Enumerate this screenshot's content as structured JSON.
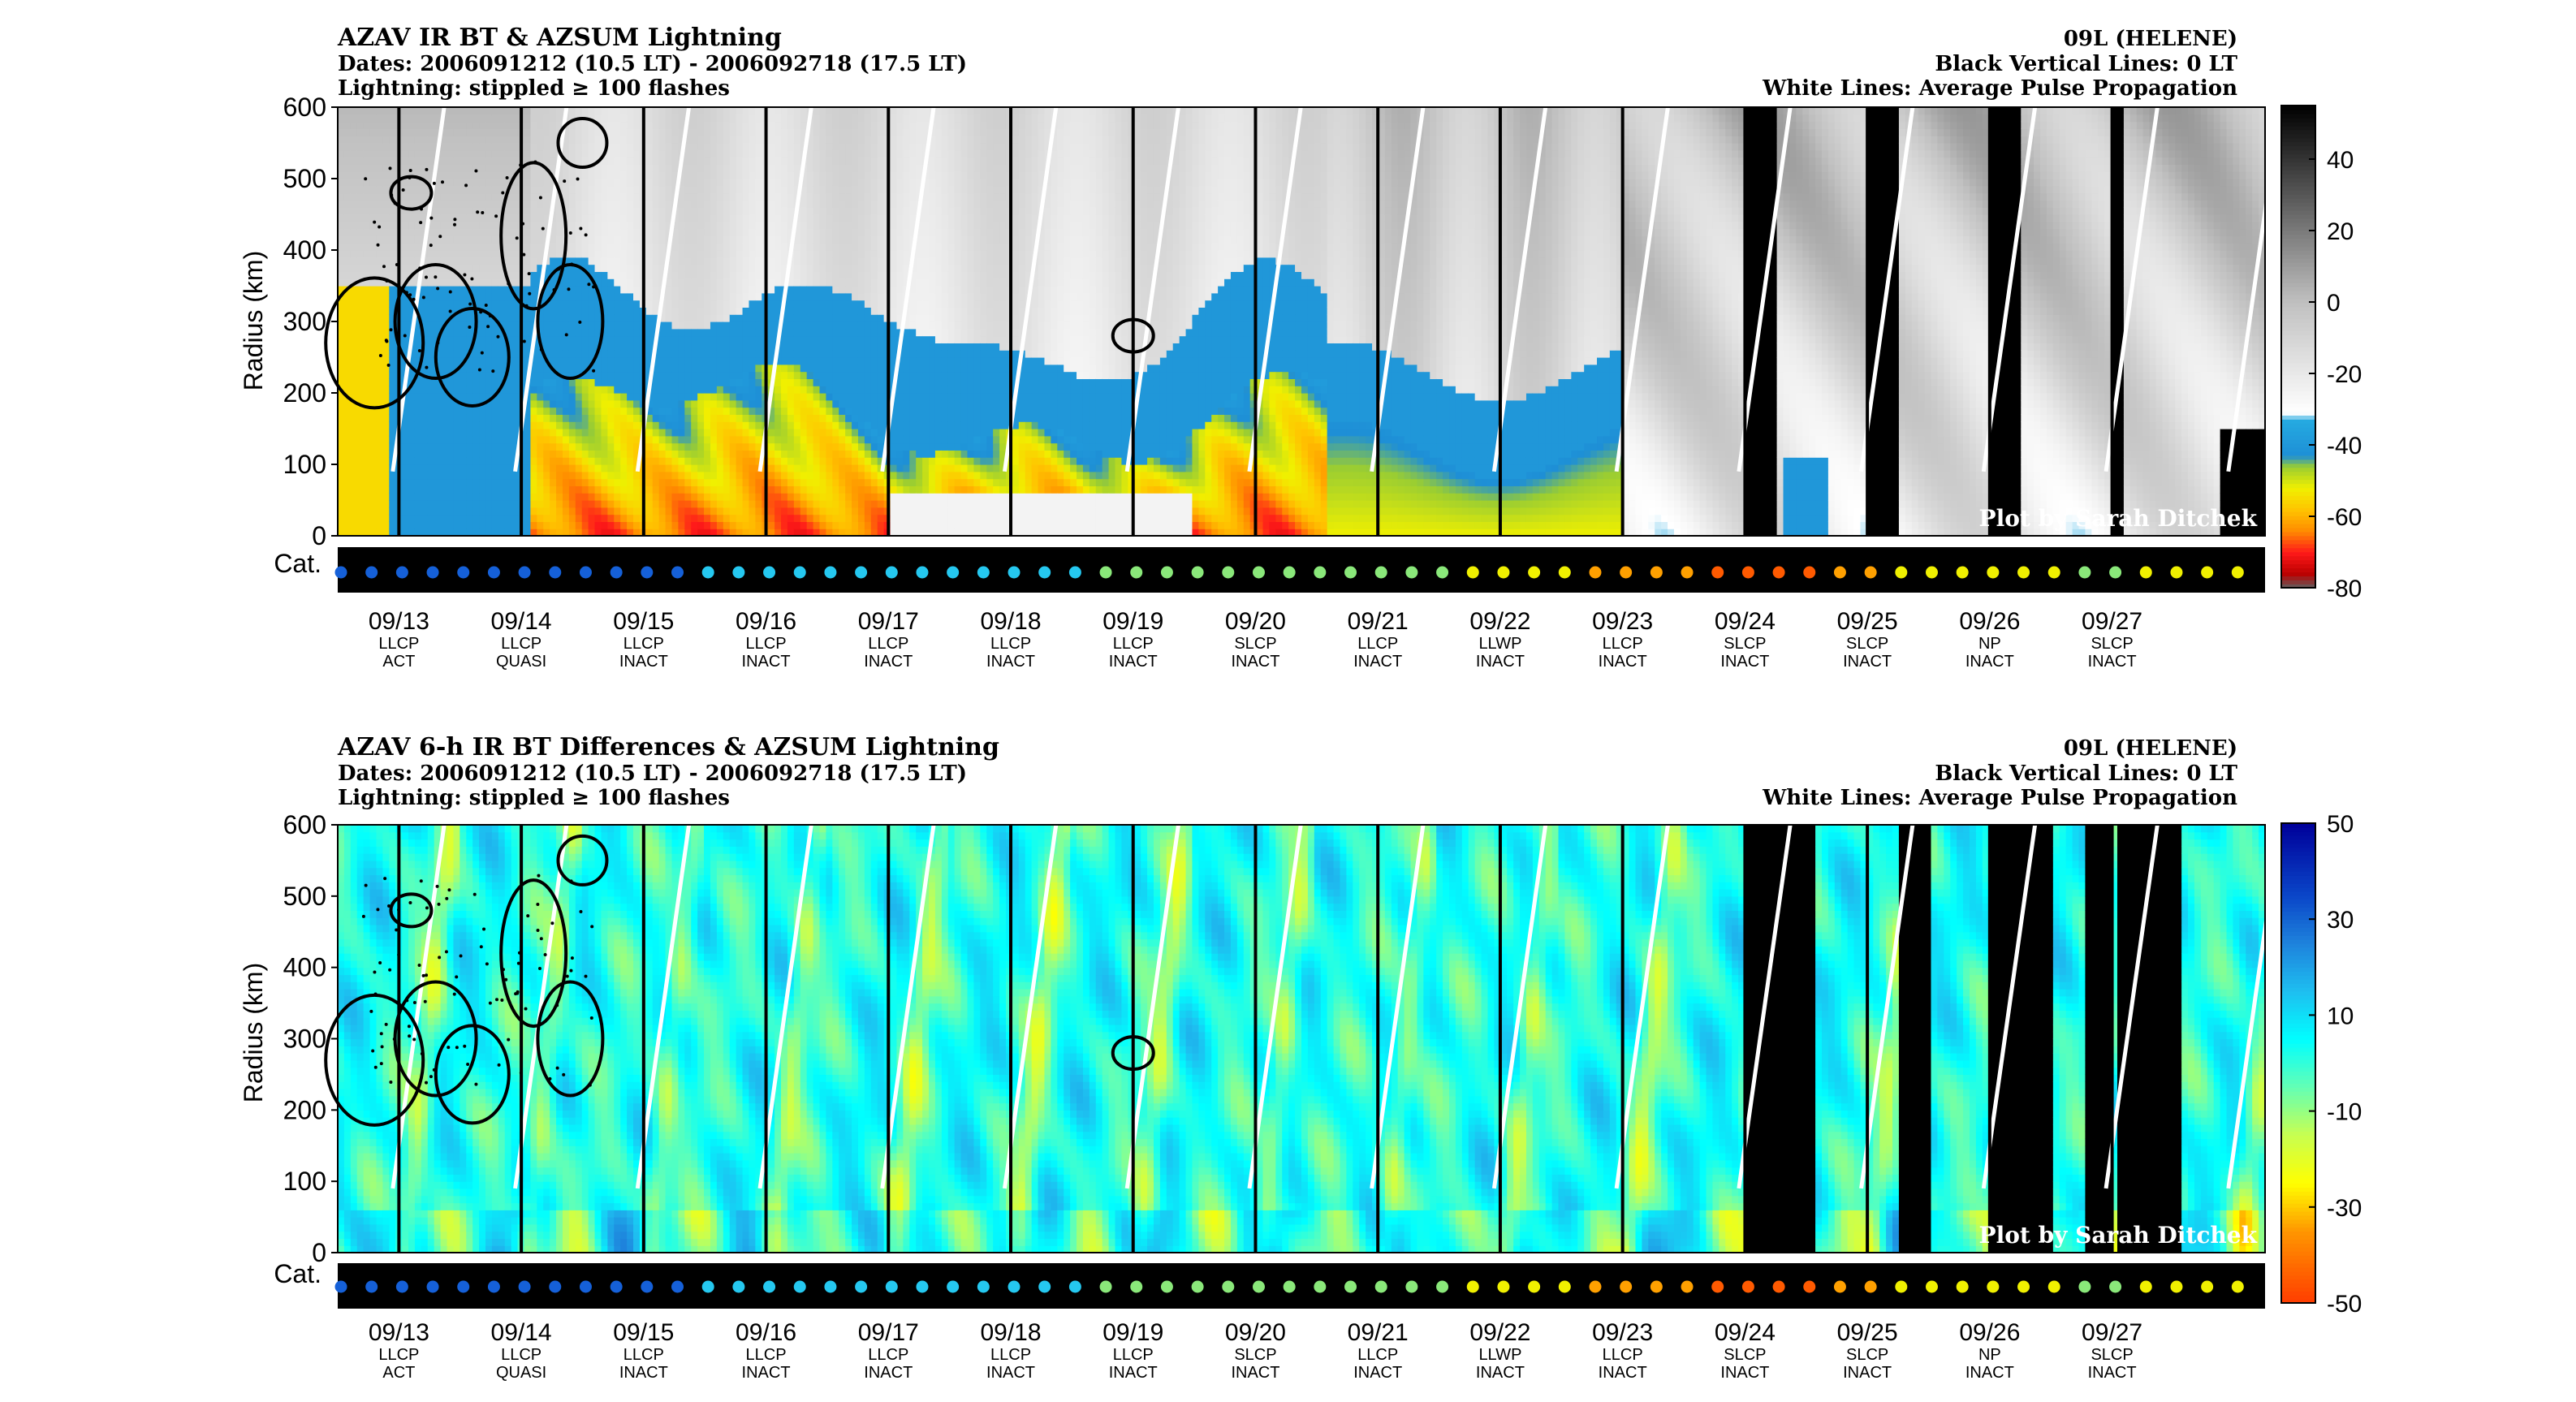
{
  "figure": {
    "credit": "Plot by Sarah Ditchek",
    "cat_label": "Cat.",
    "y_label": "Radius (km)"
  },
  "chart_data": [
    {
      "type": "heatmap",
      "title": "AZAV IR BT & AZSUM Lightning",
      "subtitle_lines": [
        "Dates: 2006091212 (10.5 LT) - 2006092718 (17.5 LT)",
        "Lightning: stippled ≥ 100 flashes"
      ],
      "right_lines": [
        "09L (HELENE)",
        "Black Vertical Lines: 0 LT",
        "White Lines: Average Pulse Propagation"
      ],
      "ylabel": "Radius (km)",
      "ylim": [
        0,
        600
      ],
      "yticks": [
        0,
        100,
        200,
        300,
        400,
        500,
        600
      ],
      "colorbar": {
        "range": [
          -80,
          55
        ],
        "ticks": [
          40,
          20,
          0,
          -20,
          -40,
          -60,
          -80
        ],
        "stops": [
          {
            "v": -80,
            "c": "#606060"
          },
          {
            "v": -76,
            "c": "#bb0000"
          },
          {
            "v": -70,
            "c": "#ff1a1a"
          },
          {
            "v": -64,
            "c": "#ff8c00"
          },
          {
            "v": -58,
            "c": "#ffc400"
          },
          {
            "v": -52,
            "c": "#f0f000"
          },
          {
            "v": -46,
            "c": "#9acd32"
          },
          {
            "v": -43,
            "c": "#1e8fd6"
          },
          {
            "v": -33,
            "c": "#25aae1"
          },
          {
            "v": -31,
            "c": "#ffffff"
          },
          {
            "v": 0,
            "c": "#c0c0c0"
          },
          {
            "v": 55,
            "c": "#000000"
          }
        ]
      },
      "credit": "Plot by Sarah Ditchek"
    },
    {
      "type": "heatmap",
      "title": "AZAV 6-h IR BT Differences & AZSUM Lightning",
      "subtitle_lines": [
        "Dates: 2006091212 (10.5 LT) - 2006092718 (17.5 LT)",
        "Lightning: stippled ≥ 100 flashes"
      ],
      "right_lines": [
        "09L (HELENE)",
        "Black Vertical Lines: 0 LT",
        "White Lines: Average Pulse Propagation"
      ],
      "ylabel": "Radius (km)",
      "ylim": [
        0,
        600
      ],
      "yticks": [
        0,
        100,
        200,
        300,
        400,
        500,
        600
      ],
      "colorbar": {
        "range": [
          -50,
          50
        ],
        "ticks": [
          50,
          30,
          10,
          -10,
          -30,
          -50
        ],
        "stops": [
          {
            "v": -50,
            "c": "#ff3c00"
          },
          {
            "v": -35,
            "c": "#ff9600"
          },
          {
            "v": -25,
            "c": "#ffff00"
          },
          {
            "v": -15,
            "c": "#c8ff50"
          },
          {
            "v": -5,
            "c": "#64ffb4"
          },
          {
            "v": 5,
            "c": "#00ffff"
          },
          {
            "v": 15,
            "c": "#1ebef0"
          },
          {
            "v": 25,
            "c": "#1e82dc"
          },
          {
            "v": 35,
            "c": "#0a46c8"
          },
          {
            "v": 50,
            "c": "#00009a"
          }
        ]
      },
      "credit": "Plot by Sarah Ditchek"
    }
  ],
  "x_axis": {
    "dates": [
      "09/13",
      "09/14",
      "09/15",
      "09/16",
      "09/17",
      "09/18",
      "09/19",
      "09/20",
      "09/21",
      "09/22",
      "09/23",
      "09/24",
      "09/25",
      "09/26",
      "09/27"
    ],
    "labels_line1": [
      "LLCP",
      "LLCP",
      "LLCP",
      "LLCP",
      "LLCP",
      "LLCP",
      "LLCP",
      "SLCP",
      "LLCP",
      "LLWP",
      "LLCP",
      "SLCP",
      "SLCP",
      "NP",
      "SLCP"
    ],
    "labels_line2": [
      "ACT",
      "QUASI",
      "INACT",
      "INACT",
      "INACT",
      "INACT",
      "INACT",
      "INACT",
      "INACT",
      "INACT",
      "INACT",
      "INACT",
      "INACT",
      "INACT",
      "INACT"
    ]
  },
  "cat_colors": {
    "td": "#1560d8",
    "ts": "#25c8f0",
    "c1": "#8ae87a",
    "c2": "#f0f000",
    "c3": "#ffa000",
    "c4": "#ff5a00",
    "gray": "#909090"
  }
}
